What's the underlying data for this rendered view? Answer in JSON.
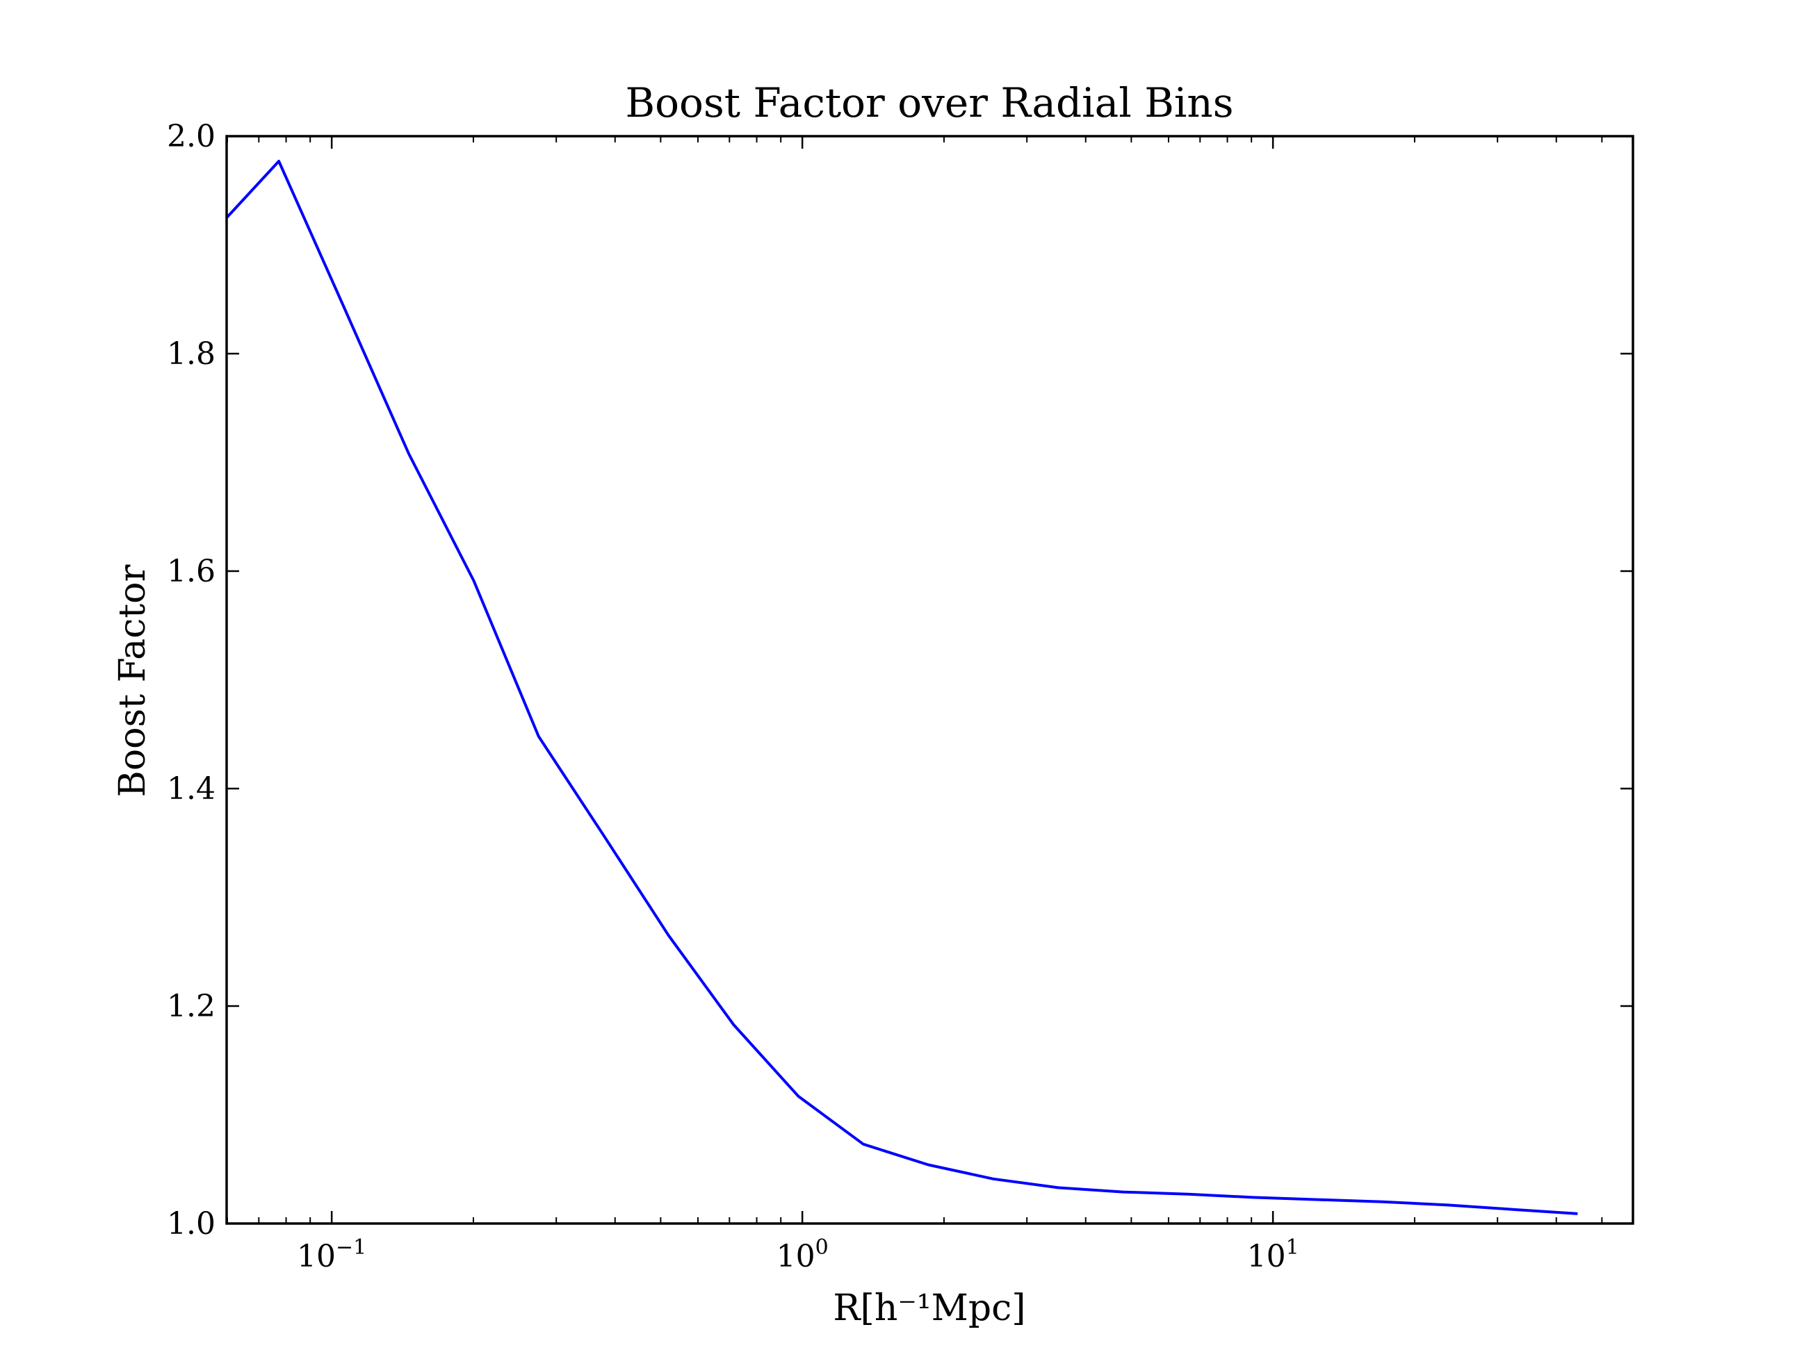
{
  "chart_data": {
    "type": "line",
    "title": "Boost Factor over Radial Bins",
    "xlabel": "R[h⁻¹Mpc]",
    "ylabel": "Boost Factor",
    "xscale": "log",
    "xlim": [
      0.0598,
      58.2
    ],
    "ylim": [
      1.0,
      2.0
    ],
    "yticks": [
      "1.0",
      "1.2",
      "1.4",
      "1.6",
      "1.8",
      "2.0"
    ],
    "xticks": [
      {
        "value": 0.1,
        "base": "10",
        "exp": "−1"
      },
      {
        "value": 1,
        "base": "10",
        "exp": "0"
      },
      {
        "value": 10,
        "base": "10",
        "exp": "1"
      }
    ],
    "grid": false,
    "legend": "none",
    "series": [
      {
        "color": "#0000ff",
        "x": [
          0.0598,
          0.0772,
          0.1061,
          0.1458,
          0.2004,
          0.2752,
          0.3782,
          0.5196,
          0.714,
          0.9809,
          1.3479,
          1.852,
          2.5447,
          3.4963,
          4.8037,
          6.6001,
          9.0684,
          12.459,
          17.119,
          23.521,
          32.317,
          44.403
        ],
        "y": [
          1.925,
          1.977,
          1.843,
          1.708,
          1.591,
          1.448,
          1.357,
          1.265,
          1.183,
          1.117,
          1.073,
          1.054,
          1.041,
          1.033,
          1.029,
          1.027,
          1.024,
          1.022,
          1.02,
          1.017,
          1.013,
          1.009
        ]
      }
    ]
  }
}
